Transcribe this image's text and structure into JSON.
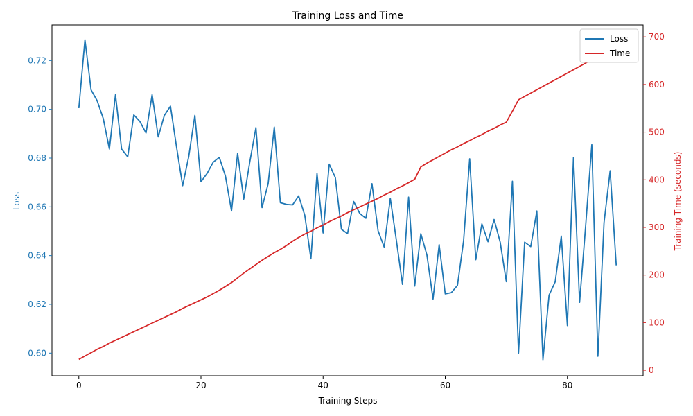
{
  "colors": {
    "loss": "#1f77b4",
    "time": "#d62728",
    "axis": "#000000"
  },
  "chart_data": {
    "type": "line",
    "title": "Training Loss and Time",
    "xlabel": "Training Steps",
    "ylabel_left": "Loss",
    "ylabel_right": "Training Time (seconds)",
    "xlim": [
      -4.4,
      92.4
    ],
    "ylim_left": [
      0.5907,
      0.7346
    ],
    "ylim_right": [
      -11.5,
      725
    ],
    "xticks": [
      0,
      20,
      40,
      60,
      80
    ],
    "yticks_left": [
      0.6,
      0.62,
      0.64,
      0.66,
      0.68,
      0.7,
      0.72
    ],
    "yticks_right": [
      0,
      100,
      200,
      300,
      400,
      500,
      600,
      700
    ],
    "legend_position": "top-right",
    "grid": false,
    "x": [
      0,
      1,
      2,
      3,
      4,
      5,
      6,
      7,
      8,
      9,
      10,
      11,
      12,
      13,
      14,
      15,
      16,
      17,
      18,
      19,
      20,
      21,
      22,
      23,
      24,
      25,
      26,
      27,
      28,
      29,
      30,
      31,
      32,
      33,
      34,
      35,
      36,
      37,
      38,
      39,
      40,
      41,
      42,
      43,
      44,
      45,
      46,
      47,
      48,
      49,
      50,
      51,
      52,
      53,
      54,
      55,
      56,
      57,
      58,
      59,
      60,
      61,
      62,
      63,
      64,
      65,
      66,
      67,
      68,
      69,
      70,
      71,
      72,
      73,
      74,
      75,
      76,
      77,
      78,
      79,
      80,
      81,
      82,
      83,
      84,
      85,
      86,
      87,
      88
    ],
    "series": [
      {
        "name": "Loss",
        "axis": "left",
        "values": [
          0.7005,
          0.7285,
          0.708,
          0.7035,
          0.6962,
          0.6837,
          0.706,
          0.6837,
          0.6805,
          0.6977,
          0.695,
          0.6903,
          0.706,
          0.6887,
          0.6975,
          0.7013,
          0.6845,
          0.6687,
          0.6807,
          0.6975,
          0.6703,
          0.6737,
          0.6783,
          0.6803,
          0.6727,
          0.6583,
          0.682,
          0.6632,
          0.6785,
          0.6925,
          0.6597,
          0.6695,
          0.6927,
          0.6617,
          0.661,
          0.6608,
          0.6645,
          0.6565,
          0.6387,
          0.6737,
          0.6493,
          0.6775,
          0.672,
          0.6508,
          0.649,
          0.6622,
          0.6573,
          0.6553,
          0.6695,
          0.6502,
          0.6435,
          0.6635,
          0.6462,
          0.6282,
          0.664,
          0.6275,
          0.649,
          0.6402,
          0.6222,
          0.6445,
          0.6243,
          0.6248,
          0.6278,
          0.646,
          0.6797,
          0.6383,
          0.653,
          0.6457,
          0.6548,
          0.6455,
          0.6293,
          0.6705,
          0.6,
          0.6455,
          0.6437,
          0.6583,
          0.5973,
          0.6238,
          0.6292,
          0.648,
          0.6113,
          0.6803,
          0.6208,
          0.6525,
          0.6855,
          0.5987,
          0.6535,
          0.6748,
          0.636
        ]
      },
      {
        "name": "Time",
        "axis": "right",
        "values": [
          23,
          30,
          37,
          44,
          50,
          57,
          63,
          69,
          75,
          81,
          87,
          93,
          99,
          105,
          111,
          117,
          123,
          130,
          136,
          142,
          148,
          154,
          161,
          168,
          176,
          184,
          194,
          204,
          213,
          222,
          231,
          239,
          247,
          254,
          262,
          271,
          279,
          286,
          292,
          299,
          305,
          312,
          318,
          324,
          331,
          337,
          343,
          349,
          355,
          361,
          368,
          374,
          381,
          387,
          394,
          401,
          427,
          435,
          442,
          449,
          456,
          463,
          469,
          476,
          482,
          489,
          495,
          502,
          508,
          515,
          521,
          544,
          568,
          575,
          582,
          589,
          596,
          603,
          610,
          617,
          624,
          631,
          638,
          645,
          652,
          659,
          666,
          673,
          688
        ]
      }
    ]
  }
}
